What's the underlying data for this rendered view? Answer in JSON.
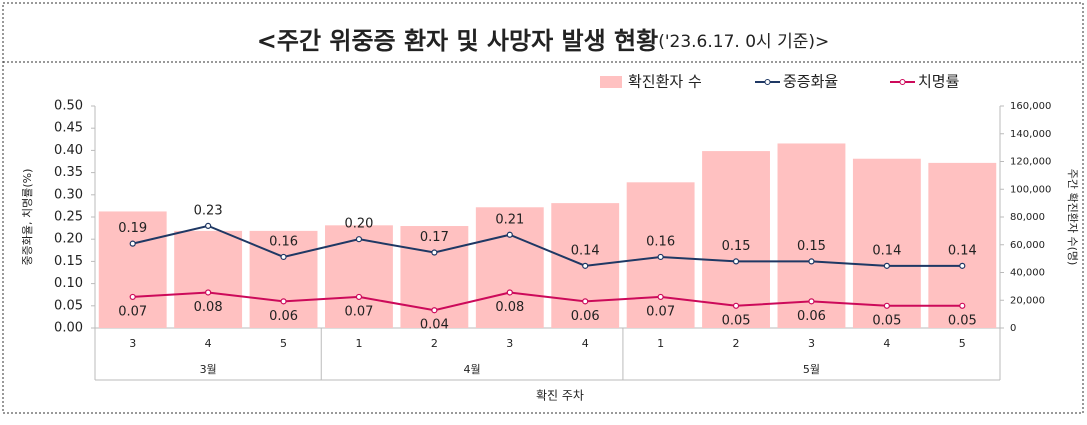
{
  "chart_data": {
    "type": "combo",
    "title": "<주간 위중증 환자 및 사망자 발생 현황",
    "title_note": "('23.6.17. 0시 기준)>",
    "x_label": "확진 주차",
    "y_label": "중증화율, 치명률(%)",
    "y2_label": "주간 확진환자 수(명)",
    "groups": [
      {
        "label": "3월",
        "categories": [
          "3",
          "4",
          "5"
        ]
      },
      {
        "label": "4월",
        "categories": [
          "1",
          "2",
          "3",
          "4"
        ]
      },
      {
        "label": "5월",
        "categories": [
          "1",
          "2",
          "3",
          "4",
          "5"
        ]
      }
    ],
    "series": [
      {
        "name": "확진환자 수",
        "type": "bar",
        "axis": "y2",
        "color": "#ffc1c1",
        "values": [
          84000,
          70000,
          70000,
          74000,
          73500,
          87000,
          90000,
          105000,
          127500,
          133000,
          122000,
          119000
        ]
      },
      {
        "name": "중증화율",
        "type": "line",
        "color": "#1f3864",
        "values": [
          0.19,
          0.23,
          0.16,
          0.2,
          0.17,
          0.21,
          0.14,
          0.16,
          0.15,
          0.15,
          0.14,
          0.14
        ],
        "value_labels": [
          "0.19",
          "0.23",
          "0.16",
          "0.20",
          "0.17",
          "0.21",
          "0.14",
          "0.16",
          "0.15",
          "0.15",
          "0.14",
          "0.14"
        ]
      },
      {
        "name": "치명률",
        "type": "line",
        "color": "#cc0a5a",
        "values": [
          0.07,
          0.08,
          0.06,
          0.07,
          0.04,
          0.08,
          0.06,
          0.07,
          0.05,
          0.06,
          0.05,
          0.05
        ],
        "value_labels": [
          "0.07",
          "0.08",
          "0.06",
          "0.07",
          "0.04",
          "0.08",
          "0.06",
          "0.07",
          "0.05",
          "0.06",
          "0.05",
          "0.05"
        ]
      }
    ],
    "ylim": [
      0,
      0.5
    ],
    "yticks": [
      {
        "value": 0,
        "label": "0.00"
      },
      {
        "value": 0.05,
        "label": "0.05"
      },
      {
        "value": 0.1,
        "label": "0.10"
      },
      {
        "value": 0.15,
        "label": "0.15"
      },
      {
        "value": 0.2,
        "label": "0.20"
      },
      {
        "value": 0.25,
        "label": "0.25"
      },
      {
        "value": 0.3,
        "label": "0.30"
      },
      {
        "value": 0.35,
        "label": "0.35"
      },
      {
        "value": 0.4,
        "label": "0.40"
      },
      {
        "value": 0.45,
        "label": "0.45"
      },
      {
        "value": 0.5,
        "label": "0.50"
      }
    ],
    "y2lim": [
      0,
      160000
    ],
    "y2ticks": [
      0,
      {
        "value": 20000,
        "label": "20,000"
      },
      {
        "value": 40000,
        "label": "40,000"
      },
      {
        "value": 60000,
        "label": "60,000"
      },
      {
        "value": 80000,
        "label": "80,000"
      },
      {
        "value": 100000,
        "label": "100,000"
      },
      {
        "value": 120000,
        "label": "120,000"
      },
      {
        "value": 140000,
        "label": "140,000"
      },
      {
        "value": 160000,
        "label": "160,000"
      }
    ],
    "legend": "top-right"
  }
}
